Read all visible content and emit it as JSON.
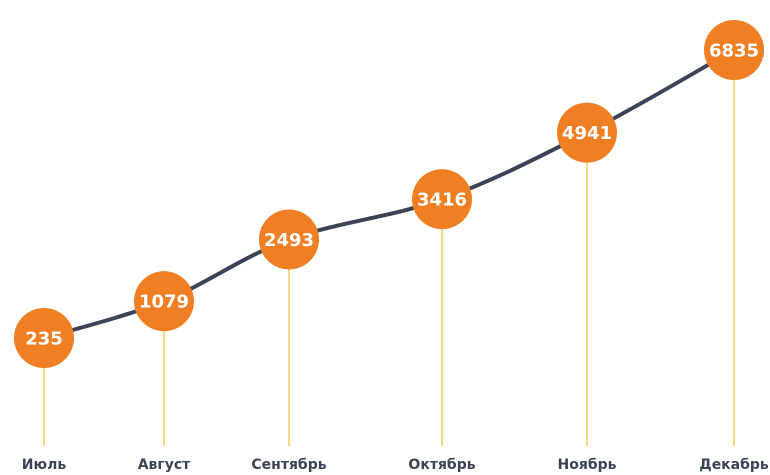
{
  "chart_data": {
    "type": "line",
    "categories": [
      "Июль",
      "Август",
      "Сентябрь",
      "Октябрь",
      "Ноябрь",
      "Декабрь"
    ],
    "values": [
      235,
      1079,
      2493,
      3416,
      4941,
      6835
    ],
    "color": "#3b4457",
    "marker_color": "#ef7f22",
    "drop_line_color": "#f2c12e"
  }
}
